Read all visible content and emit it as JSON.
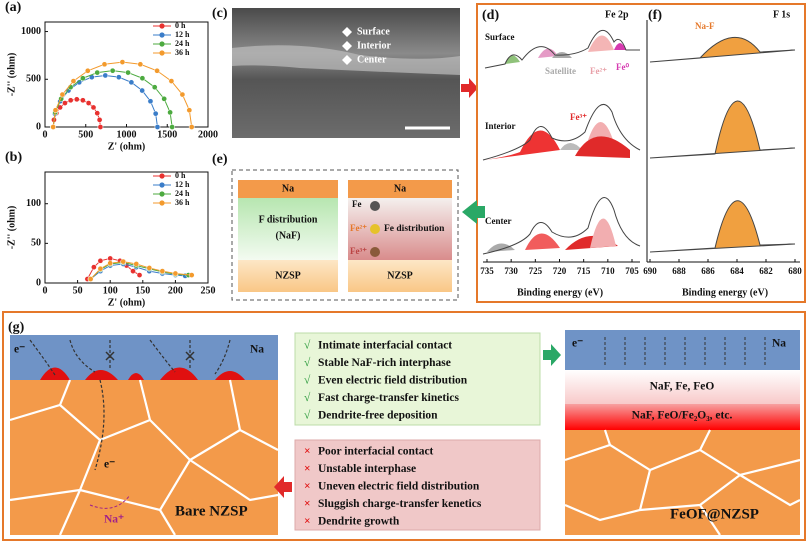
{
  "chart_data": [
    {
      "type": "line",
      "label": "(a)",
      "xlabel": "Z' (ohm)",
      "ylabel": "-Z'' (ohm)",
      "xlim": [
        0,
        2000
      ],
      "ylim": [
        0,
        1100
      ],
      "xticks": [
        0,
        500,
        1000,
        1500,
        2000
      ],
      "yticks": [
        0,
        500,
        1000
      ],
      "legend": "upper right",
      "series": [
        {
          "name": "0 h",
          "color": "#e8312f",
          "x": [
            100,
            110,
            139,
            185,
            245,
            315,
            390,
            465,
            535,
            595,
            641,
            670,
            680
          ],
          "values": [
            0,
            75,
            145,
            205,
            251,
            280,
            290,
            280,
            251,
            205,
            145,
            75,
            0
          ]
        },
        {
          "name": "12 h",
          "color": "#3a7dc9",
          "x": [
            100,
            122,
            186,
            288,
            420,
            574,
            740,
            906,
            1060,
            1192,
            1294,
            1358,
            1380
          ],
          "values": [
            0,
            140,
            270,
            382,
            468,
            522,
            540,
            522,
            468,
            382,
            270,
            140,
            0
          ]
        },
        {
          "name": "24 h",
          "color": "#4caa3f",
          "x": [
            100,
            125,
            198,
            314,
            465,
            641,
            830,
            1019,
            1195,
            1346,
            1462,
            1535,
            1560
          ],
          "values": [
            0,
            153,
            295,
            417,
            511,
            570,
            590,
            570,
            511,
            417,
            295,
            153,
            0
          ]
        },
        {
          "name": "36 h",
          "color": "#f39a2c",
          "x": [
            100,
            129,
            214,
            349,
            525,
            730,
            950,
            1170,
            1375,
            1551,
            1686,
            1771,
            1800
          ],
          "values": [
            0,
            176,
            340,
            481,
            589,
            657,
            680,
            657,
            589,
            481,
            340,
            176,
            0
          ]
        }
      ]
    },
    {
      "type": "line",
      "label": "(b)",
      "xlabel": "Z' (ohm)",
      "ylabel": "-Z'' (ohm)",
      "xlim": [
        0,
        250
      ],
      "ylim": [
        0,
        140
      ],
      "xticks": [
        0,
        50,
        100,
        150,
        200,
        250
      ],
      "yticks": [
        0,
        50,
        100
      ],
      "legend": "upper right",
      "series": [
        {
          "name": "0 h",
          "color": "#e8312f",
          "x": [
            65,
            75,
            85,
            100,
            115,
            125,
            135,
            145
          ],
          "values": [
            5,
            20,
            28,
            31,
            28,
            22,
            15,
            10
          ]
        },
        {
          "name": "12 h",
          "color": "#3a7dc9",
          "x": [
            70,
            85,
            100,
            120,
            140,
            160,
            180,
            200,
            215
          ],
          "values": [
            5,
            15,
            22,
            24,
            20,
            15,
            12,
            10,
            9
          ]
        },
        {
          "name": "24 h",
          "color": "#4caa3f",
          "x": [
            70,
            85,
            100,
            120,
            140,
            160,
            180,
            200,
            220
          ],
          "values": [
            5,
            17,
            24,
            26,
            22,
            18,
            14,
            11,
            10
          ]
        },
        {
          "name": "36 h",
          "color": "#f39a2c",
          "x": [
            70,
            85,
            100,
            120,
            140,
            160,
            180,
            200,
            225
          ],
          "values": [
            5,
            18,
            25,
            27,
            24,
            19,
            15,
            12,
            10
          ]
        }
      ]
    }
  ],
  "sem": {
    "label": "(c)",
    "layers": [
      "Surface",
      "Interior",
      "Center"
    ]
  },
  "xps": {
    "label_d": "(d)",
    "label_f": "(f)",
    "rows": [
      "Surface",
      "Interior",
      "Center"
    ],
    "annotations": {
      "satellite": "Satellite",
      "fe2": "Fe²⁺",
      "fe0": "Fe⁰",
      "fe3": "Fe³⁺",
      "naf": "Na-F"
    },
    "panels": [
      {
        "title": "Fe 2p",
        "xlim": [
          735,
          705
        ],
        "xticks": [
          735,
          730,
          725,
          720,
          715,
          710,
          705
        ],
        "xlabel": "Binding energy (eV)"
      },
      {
        "title": "F 1s",
        "xlim": [
          690,
          680
        ],
        "xticks": [
          690,
          688,
          686,
          684,
          682,
          680
        ],
        "xlabel": "Binding energy (eV)"
      }
    ]
  },
  "schematic_e": {
    "label": "(e)",
    "left": {
      "top": "Na",
      "middle": [
        "F distribution",
        "(NaF)"
      ],
      "bottom": "NZSP"
    },
    "right": {
      "top": "Na",
      "middle": "Fe distribution",
      "species": [
        "Fe",
        "Fe²⁺",
        "Fe³⁺"
      ],
      "bottom": "NZSP"
    }
  },
  "schematic_g": {
    "label": "(g)",
    "check": "√",
    "cross": "×",
    "left": {
      "metal": "Na",
      "electron": "e⁻",
      "ion": "Na⁺",
      "name": "Bare NZSP"
    },
    "advantages": [
      "Intimate interfacial contact",
      "Stable NaF-rich interphase",
      "Even electric field distribution",
      "Fast charge-transfer kinetics",
      "Dendrite-free deposition"
    ],
    "problems": [
      "Poor interfacial contact",
      "Unstable interphase",
      "Uneven electric field distribution",
      "Sluggish charge-transfer kenetics",
      "Dendrite growth"
    ],
    "right": {
      "metal": "Na",
      "electron": "e⁻",
      "layer1": "NaF, Fe, FeO",
      "layer2": "NaF, FeO/Fe₂O₃, etc.",
      "name": "FeOF@NZSP"
    }
  }
}
